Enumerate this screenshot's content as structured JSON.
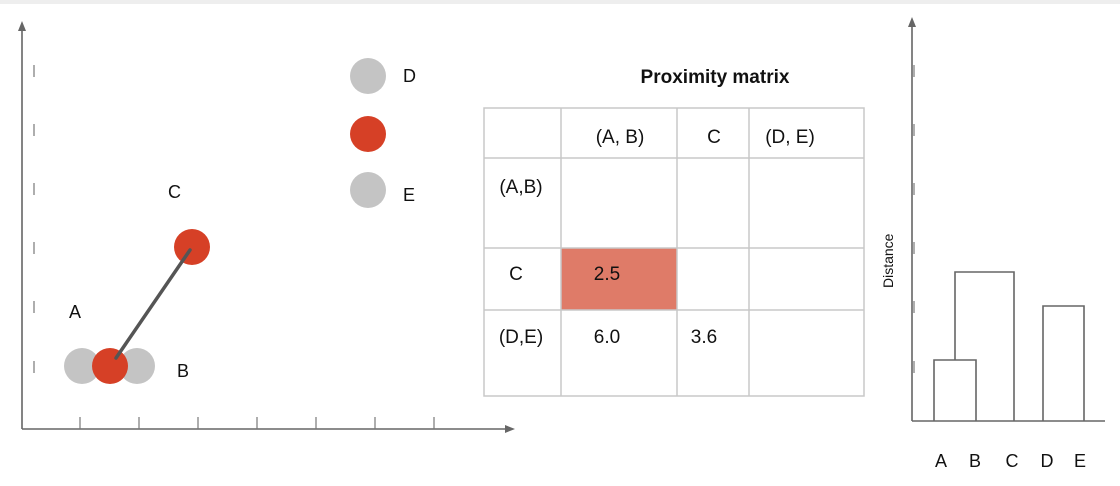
{
  "colors": {
    "merged": "#d64026",
    "point": "#c4c4c4",
    "highlight": "#df7b68",
    "line": "#555555"
  },
  "scatter": {
    "labels": {
      "a": "A",
      "b": "B",
      "c": "C",
      "d": "D",
      "e": "E"
    }
  },
  "matrix": {
    "title": "Proximity matrix",
    "col_headers": [
      "(A, B)",
      "C",
      "(D, E)"
    ],
    "row_headers": [
      "(A,B)",
      "C",
      "(D,E)"
    ],
    "cells": [
      [
        "",
        "",
        ""
      ],
      [
        "2.5",
        "",
        ""
      ],
      [
        "6.0",
        "3.6",
        ""
      ]
    ],
    "highlighted": "2.5"
  },
  "dendrogram": {
    "ylabel": "Distance",
    "leaves": [
      "A",
      "B",
      "C",
      "D",
      "E"
    ]
  }
}
